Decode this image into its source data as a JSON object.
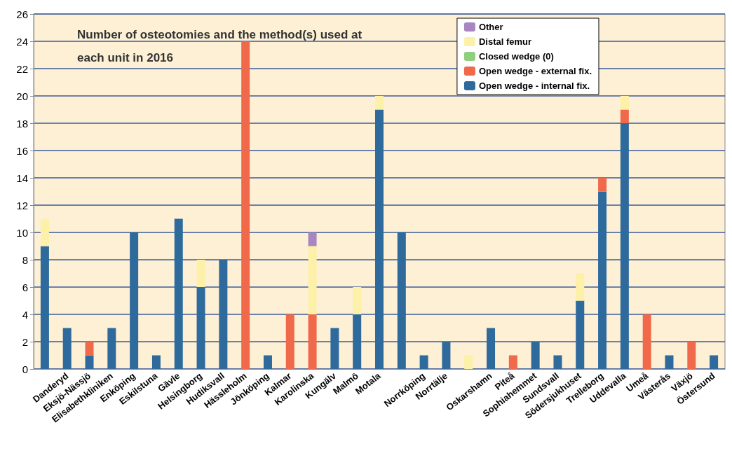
{
  "chart_data": {
    "type": "bar",
    "title": "Number of osteotomies and the method(s) used at each unit in 2016",
    "categories": [
      null,
      "Danderyd",
      "Eksjö-Nässjö",
      "Elisabethkliniken",
      "Enköping",
      "Eskilstuna",
      "Gävle",
      "Helsingborg",
      "Hudiksvall",
      "Hässleholm",
      "Jönköping",
      "Kalmar",
      "Karolinska",
      "Kungälv",
      "Malmö",
      "Motala",
      null,
      "Norrköping",
      "Norrtälje",
      null,
      "Oskarshamn",
      "Piteå",
      "Sophiahemmet",
      "Sundsvall",
      "Södersjukhuset",
      "Trelleborg",
      "Uddevalla",
      "Umeå",
      "Västerås",
      "Växjö",
      "Östersund"
    ],
    "series": [
      {
        "name": "Open wedge - internal fix.",
        "color": "#2e6a9c",
        "values": [
          9,
          3,
          1,
          3,
          10,
          1,
          11,
          6,
          8,
          0,
          1,
          0,
          0,
          3,
          4,
          19,
          10,
          1,
          2,
          0,
          3,
          0,
          2,
          1,
          5,
          13,
          18,
          0,
          1,
          0,
          1
        ]
      },
      {
        "name": "Open wedge - external fix.",
        "color": "#f0694a",
        "values": [
          0,
          0,
          1,
          0,
          0,
          0,
          0,
          0,
          0,
          24,
          0,
          4,
          4,
          0,
          0,
          0,
          0,
          0,
          0,
          0,
          0,
          1,
          0,
          0,
          0,
          1,
          1,
          4,
          0,
          2,
          0
        ]
      },
      {
        "name": "Closed wedge (0)",
        "color": "#8fcf7f",
        "values": [
          0,
          0,
          0,
          0,
          0,
          0,
          0,
          0,
          0,
          0,
          0,
          0,
          0,
          0,
          0,
          0,
          0,
          0,
          0,
          0,
          0,
          0,
          0,
          0,
          0,
          0,
          0,
          0,
          0,
          0,
          0
        ]
      },
      {
        "name": "Distal femur",
        "color": "#fdf0a8",
        "values": [
          2,
          0,
          0,
          0,
          0,
          0,
          0,
          2,
          0,
          0,
          0,
          0,
          5,
          0,
          2,
          1,
          0,
          0,
          0,
          1,
          0,
          0,
          0,
          0,
          2,
          0,
          1,
          0,
          0,
          0,
          0
        ]
      },
      {
        "name": "Other",
        "color": "#a887c0",
        "values": [
          0,
          0,
          0,
          0,
          0,
          0,
          0,
          0,
          0,
          0,
          0,
          0,
          1,
          0,
          0,
          0,
          0,
          0,
          0,
          0,
          0,
          0,
          0,
          0,
          0,
          0,
          0,
          0,
          0,
          0,
          0
        ]
      }
    ],
    "stacked": true,
    "ylim": [
      0,
      26
    ],
    "yticks": [
      0,
      2,
      4,
      6,
      8,
      10,
      12,
      14,
      16,
      18,
      20,
      22,
      24,
      26
    ],
    "grid": "y",
    "legend": "top right"
  }
}
